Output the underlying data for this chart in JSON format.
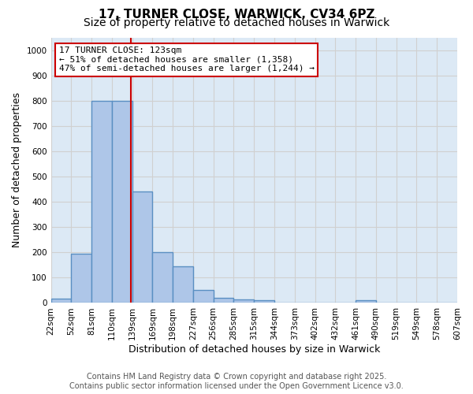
{
  "title_line1": "17, TURNER CLOSE, WARWICK, CV34 6PZ",
  "title_line2": "Size of property relative to detached houses in Warwick",
  "xlabel": "Distribution of detached houses by size in Warwick",
  "ylabel": "Number of detached properties",
  "tick_labels": [
    "22sqm",
    "52sqm",
    "81sqm",
    "110sqm",
    "139sqm",
    "169sqm",
    "198sqm",
    "227sqm",
    "256sqm",
    "285sqm",
    "315sqm",
    "344sqm",
    "373sqm",
    "402sqm",
    "432sqm",
    "461sqm",
    "490sqm",
    "519sqm",
    "549sqm",
    "578sqm",
    "607sqm"
  ],
  "bar_values": [
    18,
    195,
    800,
    800,
    440,
    200,
    145,
    50,
    20,
    15,
    10,
    0,
    0,
    0,
    0,
    10,
    0,
    0,
    0,
    0
  ],
  "bar_color": "#aec6e8",
  "bar_edgecolor": "#5a8fc2",
  "bar_linewidth": 1.0,
  "vline_x": 3.45,
  "vline_color": "#cc0000",
  "annotation_text": "17 TURNER CLOSE: 123sqm\n← 51% of detached houses are smaller (1,358)\n47% of semi-detached houses are larger (1,244) →",
  "annotation_box_edgecolor": "#cc0000",
  "annotation_box_facecolor": "#ffffff",
  "ylim": [
    0,
    1050
  ],
  "yticks": [
    0,
    100,
    200,
    300,
    400,
    500,
    600,
    700,
    800,
    900,
    1000
  ],
  "grid_color": "#d0d0d0",
  "background_color": "#dce9f5",
  "footer_line1": "Contains HM Land Registry data © Crown copyright and database right 2025.",
  "footer_line2": "Contains public sector information licensed under the Open Government Licence v3.0.",
  "title_fontsize": 11,
  "subtitle_fontsize": 10,
  "axis_label_fontsize": 9,
  "tick_fontsize": 7.5,
  "annotation_fontsize": 8,
  "footer_fontsize": 7
}
